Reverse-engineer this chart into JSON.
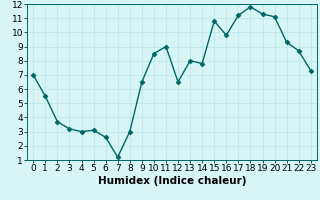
{
  "x": [
    0,
    1,
    2,
    3,
    4,
    5,
    6,
    7,
    8,
    9,
    10,
    11,
    12,
    13,
    14,
    15,
    16,
    17,
    18,
    19,
    20,
    21,
    22,
    23
  ],
  "y": [
    7,
    5.5,
    3.7,
    3.2,
    3.0,
    3.1,
    2.6,
    1.2,
    3.0,
    6.5,
    8.5,
    9.0,
    6.5,
    8.0,
    7.8,
    10.8,
    9.8,
    11.2,
    11.8,
    11.3,
    11.1,
    9.3,
    8.7,
    7.3
  ],
  "line_color": "#006666",
  "marker": "D",
  "marker_size": 2.5,
  "linewidth": 1.0,
  "xlabel": "Humidex (Indice chaleur)",
  "xlim": [
    -0.5,
    23.5
  ],
  "ylim": [
    1,
    12
  ],
  "yticks": [
    1,
    2,
    3,
    4,
    5,
    6,
    7,
    8,
    9,
    10,
    11,
    12
  ],
  "xticks": [
    0,
    1,
    2,
    3,
    4,
    5,
    6,
    7,
    8,
    9,
    10,
    11,
    12,
    13,
    14,
    15,
    16,
    17,
    18,
    19,
    20,
    21,
    22,
    23
  ],
  "bg_color": "#d8f5f5",
  "grid_color": "#c0e8e8",
  "xlabel_fontsize": 7.5,
  "tick_fontsize": 6.5
}
